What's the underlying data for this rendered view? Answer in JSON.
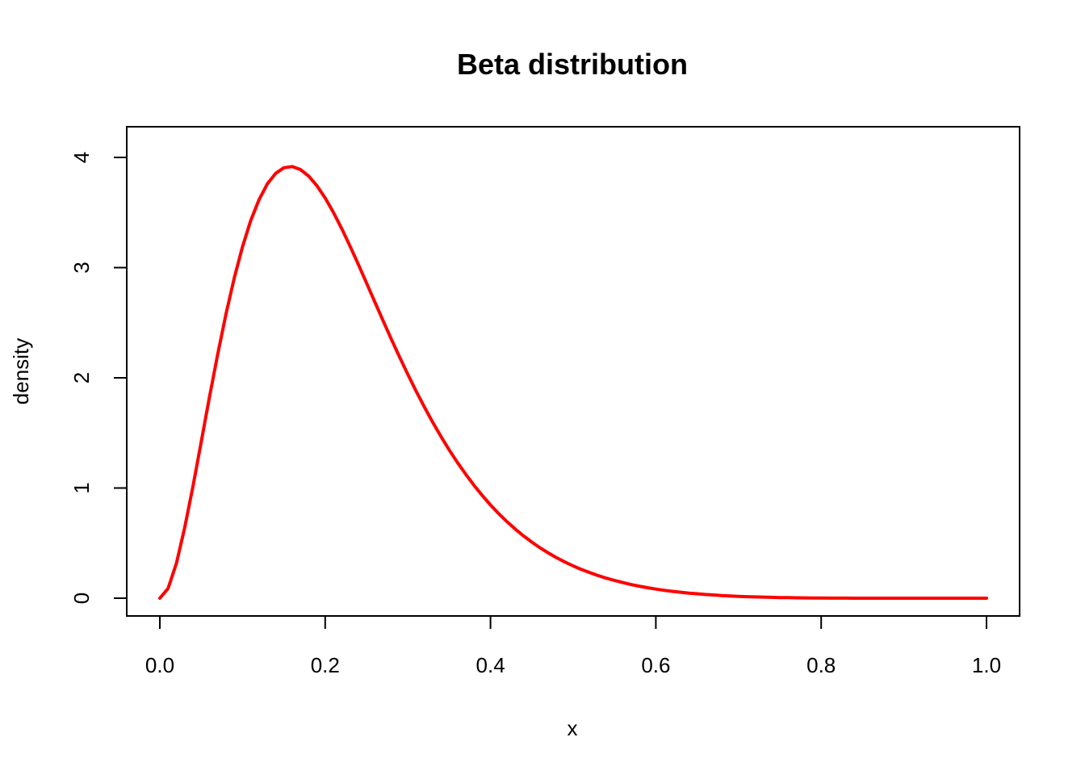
{
  "chart_data": {
    "type": "line",
    "title": "Beta distribution",
    "xlabel": "x",
    "ylabel": "density",
    "xlim": [
      0,
      1
    ],
    "ylim": [
      0,
      4.11
    ],
    "x_ticks": [
      0.0,
      0.2,
      0.4,
      0.6,
      0.8,
      1.0
    ],
    "x_tick_labels": [
      "0.0",
      "0.2",
      "0.4",
      "0.6",
      "0.8",
      "1.0"
    ],
    "y_ticks": [
      0,
      1,
      2,
      3,
      4
    ],
    "y_tick_labels": [
      "0",
      "1",
      "2",
      "3",
      "4"
    ],
    "grid": false,
    "series": [
      {
        "color": "#ff0000",
        "x": [
          0,
          0.01,
          0.02,
          0.03,
          0.04,
          0.05,
          0.06,
          0.07,
          0.08,
          0.09,
          0.1,
          0.11,
          0.12,
          0.13,
          0.14,
          0.15,
          0.16,
          0.17,
          0.18,
          0.19,
          0.2,
          0.21,
          0.22,
          0.23,
          0.24,
          0.25,
          0.26,
          0.27,
          0.28,
          0.29,
          0.3,
          0.31,
          0.32,
          0.33,
          0.34,
          0.35,
          0.36,
          0.37,
          0.38,
          0.39,
          0.4,
          0.41,
          0.42,
          0.43,
          0.44,
          0.45,
          0.46,
          0.47,
          0.48,
          0.49,
          0.5,
          0.51,
          0.52,
          0.53,
          0.54,
          0.55,
          0.56,
          0.57,
          0.58,
          0.59,
          0.6,
          0.61,
          0.62,
          0.63,
          0.64,
          0.65,
          0.66,
          0.67,
          0.68,
          0.69,
          0.7,
          0.71,
          0.72,
          0.73,
          0.74,
          0.75,
          0.76,
          0.77,
          0.78,
          0.79,
          0.8,
          0.81,
          0.82,
          0.83,
          0.84,
          0.85,
          0.86,
          0.87,
          0.88,
          0.89,
          0.9,
          0.91,
          0.92,
          0.93,
          0.94,
          0.95,
          0.96,
          0.97,
          0.98,
          0.99,
          1.0
        ],
        "y": [
          0,
          0.089,
          0.316,
          0.637,
          1.014,
          1.417,
          1.823,
          2.214,
          2.578,
          2.906,
          3.19,
          3.428,
          3.617,
          3.759,
          3.855,
          3.906,
          3.917,
          3.89,
          3.831,
          3.743,
          3.632,
          3.501,
          3.354,
          3.196,
          3.031,
          2.861,
          2.69,
          2.519,
          2.351,
          2.188,
          2.031,
          1.88,
          1.735,
          1.598,
          1.468,
          1.346,
          1.232,
          1.125,
          1.025,
          0.932,
          0.846,
          0.767,
          0.694,
          0.627,
          0.565,
          0.509,
          0.457,
          0.41,
          0.367,
          0.328,
          0.293,
          0.261,
          0.232,
          0.206,
          0.182,
          0.161,
          0.142,
          0.124,
          0.109,
          0.095,
          0.083,
          0.072,
          0.062,
          0.054,
          0.046,
          0.04,
          0.034,
          0.029,
          0.024,
          0.02,
          0.017,
          0.014,
          0.012,
          0.01,
          0.008,
          0.006,
          0.005,
          0.004,
          0.003,
          0.002,
          0.002,
          0.001,
          0.001,
          0.001,
          0.0,
          0.0,
          0.0,
          0.0,
          0.0,
          0.0,
          0.0,
          0.0,
          0.0,
          0.0,
          0.0,
          0.0,
          0.0,
          0.0,
          0.0,
          0.0,
          0.0
        ]
      }
    ]
  }
}
